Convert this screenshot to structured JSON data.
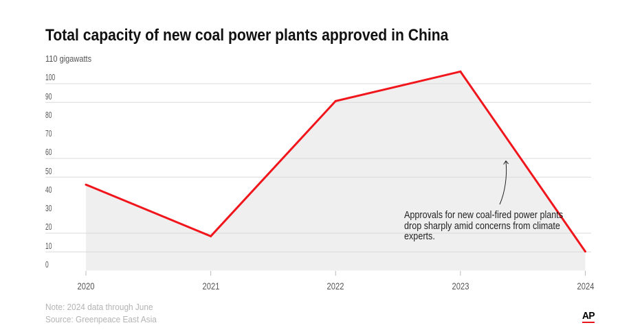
{
  "chart_data": {
    "type": "area",
    "title": "Total capacity of new coal power plants approved in China",
    "ytick_top_label": "110 gigawatts",
    "yticks": [
      0,
      10,
      20,
      30,
      40,
      50,
      60,
      70,
      80,
      90,
      100
    ],
    "ytick_labels": [
      "0",
      "10",
      "20",
      "30",
      "40",
      "50",
      "60",
      "70",
      "80",
      "90",
      "100"
    ],
    "ylim": [
      0,
      110
    ],
    "gridlines_at": [
      10,
      20,
      50,
      60,
      90,
      100
    ],
    "categories": [
      "2020",
      "2021",
      "2022",
      "2023",
      "2024"
    ],
    "series": [
      {
        "values": [
          46,
          18.4,
          90.7,
          106.5,
          10.2
        ]
      }
    ],
    "annotation": {
      "lines": [
        "Approvals for new coal-fired power plants",
        "drop sharply amid concerns from climate",
        "experts."
      ]
    },
    "note": "Note: 2024 data through June",
    "source": "Source: Greenpeace East Asia"
  },
  "branding": {
    "logo_text": "AP"
  },
  "colors": {
    "line": "#f0161c",
    "area": "#efefef",
    "grid": "#d9d9d9",
    "tick": "#bbbbbb",
    "arrow": "#222222"
  }
}
